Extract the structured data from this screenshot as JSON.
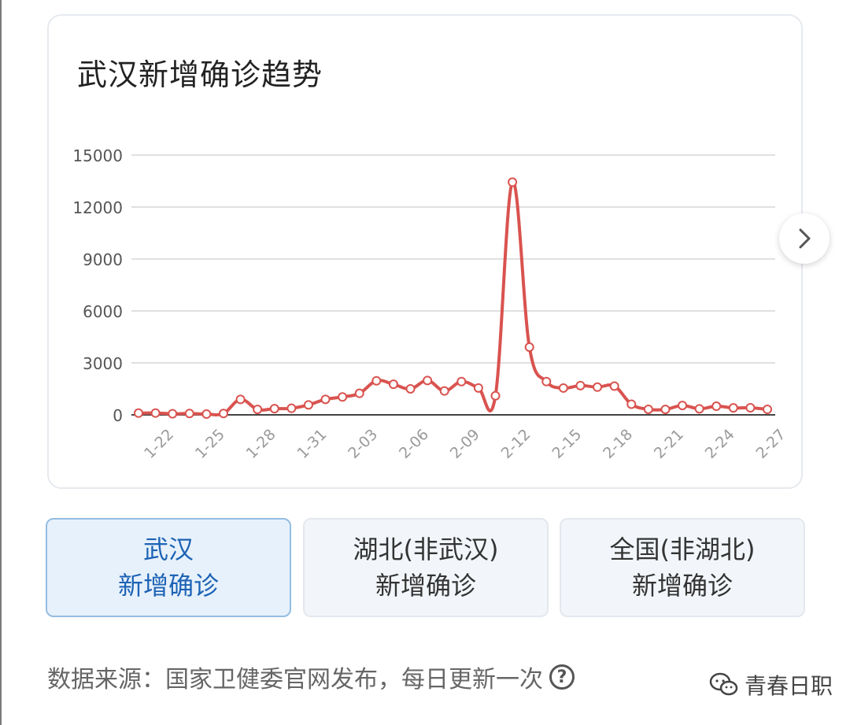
{
  "chart_card": {
    "title": "武汉新增确诊趋势"
  },
  "chart_data": {
    "type": "line",
    "title": "武汉新增确诊趋势",
    "ylim": [
      0,
      15000
    ],
    "yticks": [
      0,
      3000,
      6000,
      9000,
      12000,
      15000
    ],
    "xtick_labels": [
      "1-22",
      "1-25",
      "1-28",
      "1-31",
      "2-03",
      "2-06",
      "2-09",
      "2-12",
      "2-15",
      "2-18",
      "2-21",
      "2-24",
      "2-27"
    ],
    "grid": true,
    "line_color": "#d9534f",
    "series": [
      {
        "x": [
          "1-21",
          "1-22",
          "1-23",
          "1-24",
          "1-25",
          "1-26",
          "1-27",
          "1-28",
          "1-29",
          "1-30",
          "1-31",
          "2-01",
          "2-02",
          "2-03",
          "2-04",
          "2-05",
          "2-06",
          "2-07",
          "2-08",
          "2-09",
          "2-10",
          "2-11",
          "2-12",
          "2-13",
          "2-14",
          "2-15",
          "2-16",
          "2-17",
          "2-18",
          "2-19",
          "2-20",
          "2-21",
          "2-22",
          "2-23",
          "2-24",
          "2-25",
          "2-26",
          "2-27"
        ],
        "values": [
          100,
          105,
          62,
          77,
          46,
          80,
          892,
          315,
          356,
          378,
          576,
          894,
          1033,
          1242,
          1967,
          1766,
          1501,
          1985,
          1379,
          1920,
          1552,
          1104,
          13436,
          3910,
          1923,
          1548,
          1690,
          1600,
          1660,
          615,
          319,
          314,
          541,
          348,
          499,
          401,
          409,
          318
        ]
      }
    ]
  },
  "next_button": {
    "icon": "chevron-right-icon"
  },
  "tabs": [
    {
      "line1": "武汉",
      "line2": "新增确诊",
      "active": true
    },
    {
      "line1": "湖北(非武汉)",
      "line2": "新增确诊",
      "active": false
    },
    {
      "line1": "全国(非湖北)",
      "line2": "新增确诊",
      "active": false
    }
  ],
  "footer": {
    "source_text": "数据来源：国家卫健委官网发布，每日更新一次",
    "help_icon": "?"
  },
  "watermark": {
    "text": "青春日职",
    "icon": "wechat-icon"
  }
}
